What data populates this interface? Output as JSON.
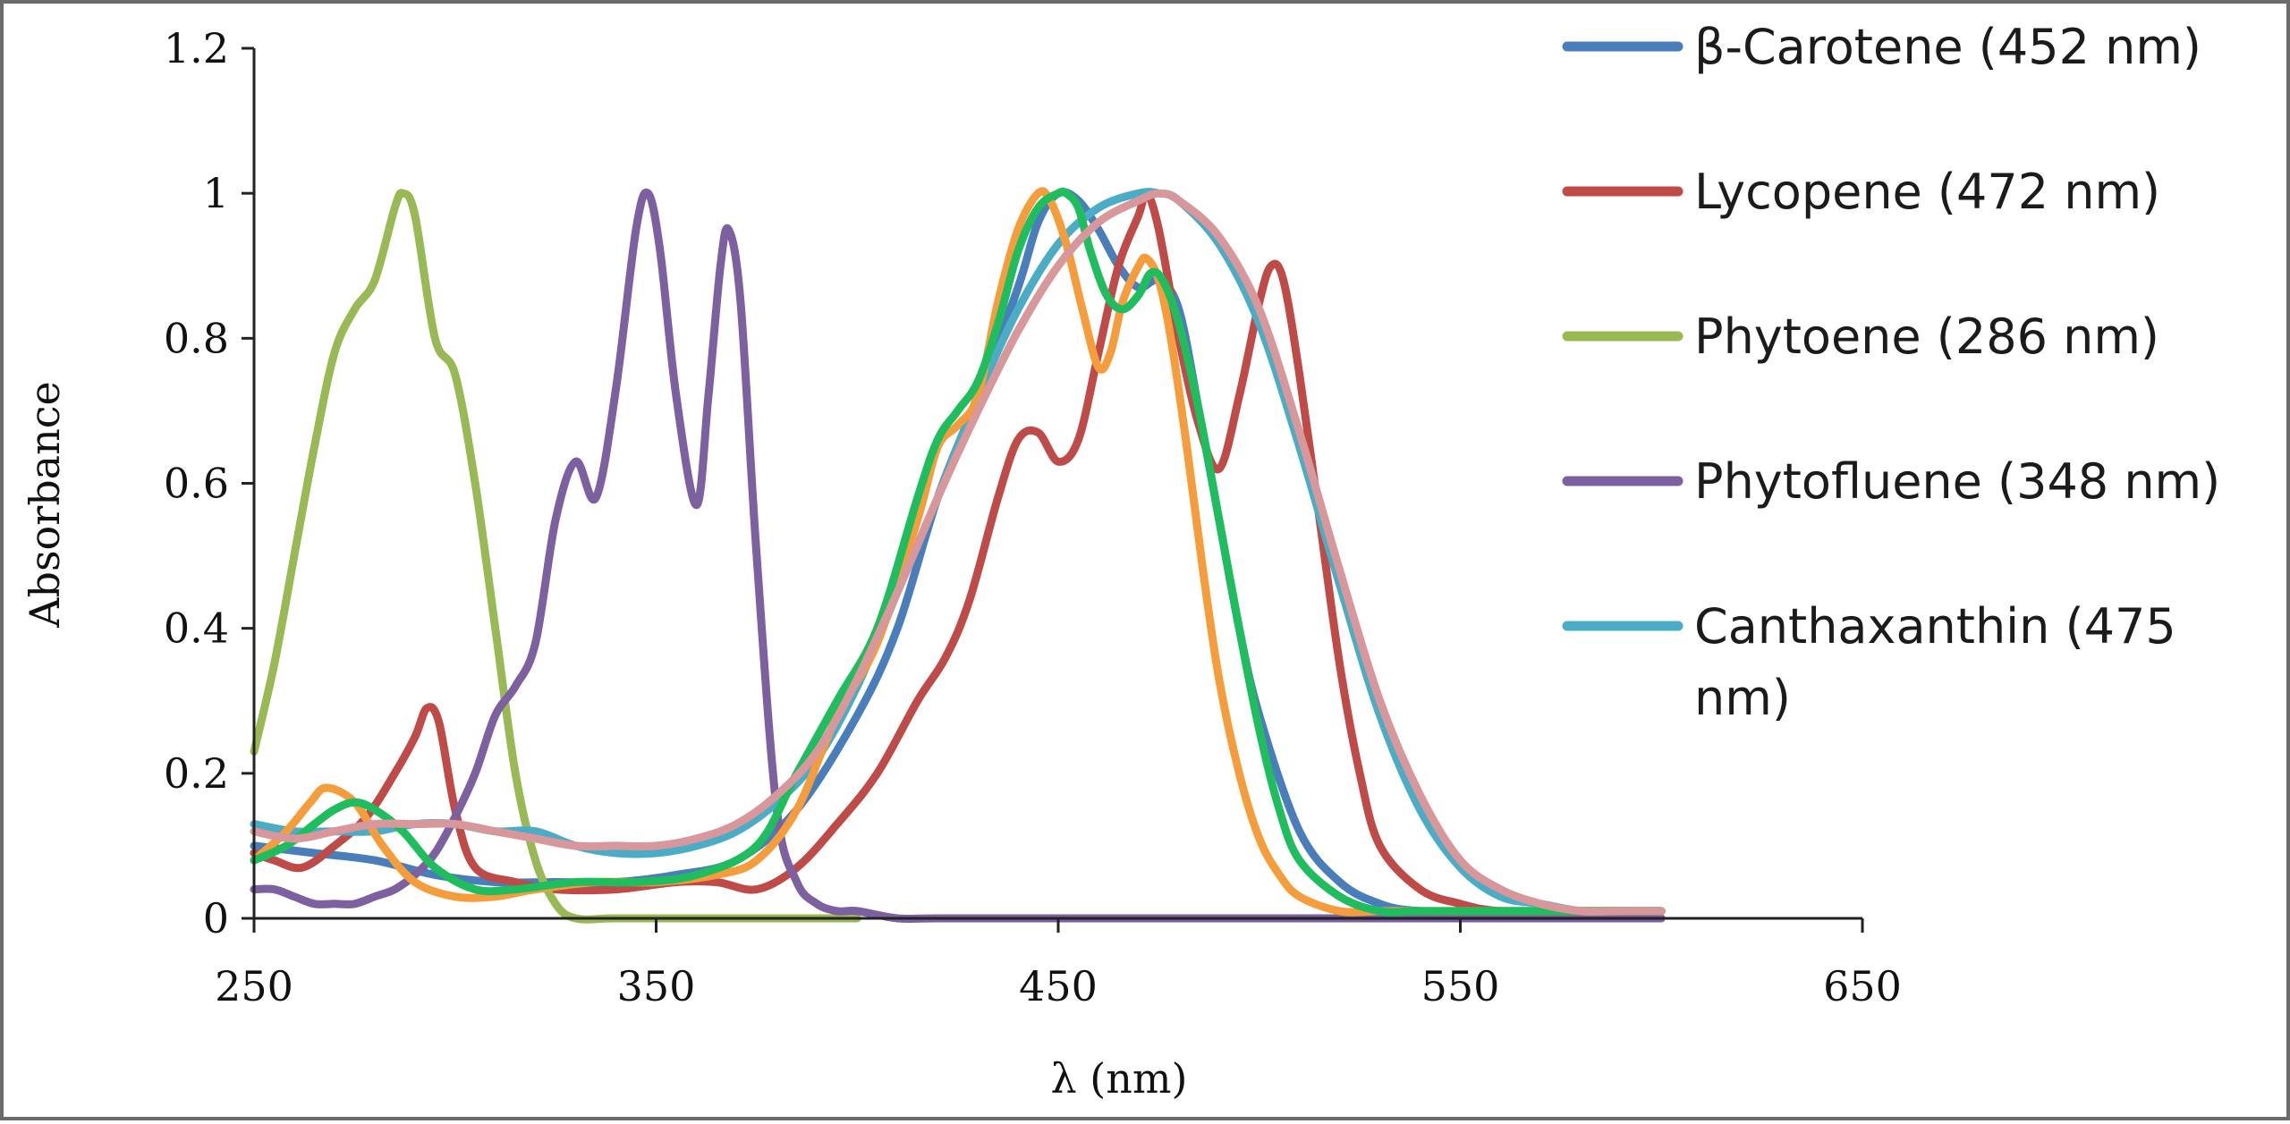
{
  "chart_data": {
    "type": "line",
    "title": "",
    "xlabel": "λ (nm)",
    "ylabel": "Absorbance",
    "xlim": [
      250,
      650
    ],
    "ylim": [
      0,
      1.2
    ],
    "x_ticks": [
      "250",
      "350",
      "450",
      "550",
      "650"
    ],
    "y_ticks": [
      "0",
      "0.2",
      "0.4",
      "0.6",
      "0.8",
      "1",
      "1.2"
    ],
    "grid": false,
    "legend_position": "top-right",
    "series": [
      {
        "name": "β-Carotene (452 nm)",
        "legend_lines": [
          "β-Carotene (452 nm)"
        ],
        "color": "#4a7ebb",
        "x": [
          250,
          265,
          280,
          295,
          310,
          325,
          340,
          355,
          370,
          385,
          400,
          410,
          420,
          430,
          440,
          445,
          450,
          455,
          460,
          465,
          470,
          475,
          480,
          485,
          490,
          495,
          500,
          510,
          520,
          530,
          540,
          560,
          580,
          600
        ],
        "y": [
          0.1,
          0.09,
          0.08,
          0.06,
          0.05,
          0.05,
          0.05,
          0.06,
          0.08,
          0.15,
          0.28,
          0.4,
          0.58,
          0.72,
          0.87,
          0.96,
          1.0,
          0.99,
          0.95,
          0.9,
          0.87,
          0.88,
          0.84,
          0.7,
          0.55,
          0.4,
          0.28,
          0.12,
          0.05,
          0.02,
          0.01,
          0.01,
          0.01,
          0.01
        ]
      },
      {
        "name": "Lycopene (472 nm)",
        "legend_lines": [
          "Lycopene (472 nm)"
        ],
        "color": "#be4b48",
        "x": [
          250,
          255,
          262,
          270,
          278,
          285,
          290,
          293,
          296,
          300,
          305,
          315,
          325,
          340,
          355,
          365,
          375,
          385,
          395,
          405,
          415,
          422,
          428,
          435,
          440,
          445,
          450,
          455,
          460,
          465,
          470,
          472,
          475,
          480,
          485,
          490,
          495,
          500,
          503,
          506,
          510,
          515,
          520,
          525,
          530,
          540,
          550,
          560,
          580,
          600
        ],
        "y": [
          0.09,
          0.08,
          0.07,
          0.1,
          0.14,
          0.2,
          0.25,
          0.29,
          0.27,
          0.15,
          0.07,
          0.05,
          0.04,
          0.04,
          0.05,
          0.05,
          0.04,
          0.07,
          0.13,
          0.2,
          0.3,
          0.36,
          0.44,
          0.58,
          0.66,
          0.67,
          0.63,
          0.66,
          0.78,
          0.9,
          0.97,
          1.0,
          0.95,
          0.8,
          0.68,
          0.62,
          0.72,
          0.85,
          0.9,
          0.88,
          0.75,
          0.55,
          0.35,
          0.2,
          0.1,
          0.04,
          0.02,
          0.01,
          0.01,
          0.01
        ]
      },
      {
        "name": "Phytoene (286 nm)",
        "legend_lines": [
          "Phytoene (286 nm)"
        ],
        "color": "#98b954",
        "x": [
          250,
          255,
          260,
          265,
          270,
          275,
          280,
          285,
          287,
          290,
          295,
          300,
          305,
          310,
          315,
          320,
          325,
          330,
          340,
          360,
          380,
          400
        ],
        "y": [
          0.23,
          0.35,
          0.5,
          0.65,
          0.78,
          0.84,
          0.88,
          0.98,
          1.0,
          0.97,
          0.8,
          0.75,
          0.6,
          0.4,
          0.2,
          0.08,
          0.02,
          0.0,
          0.0,
          0.0,
          0.0,
          0.0
        ]
      },
      {
        "name": "Phytofluene (348 nm)",
        "legend_lines": [
          "Phytofluene (348 nm)"
        ],
        "color": "#7d60a0",
        "x": [
          250,
          255,
          260,
          265,
          270,
          275,
          280,
          285,
          290,
          295,
          300,
          305,
          310,
          315,
          320,
          325,
          330,
          335,
          340,
          345,
          348,
          351,
          355,
          360,
          363,
          366,
          368,
          371,
          375,
          380,
          385,
          390,
          395,
          400,
          410,
          420,
          450,
          500,
          550,
          600
        ],
        "y": [
          0.04,
          0.04,
          0.03,
          0.02,
          0.02,
          0.02,
          0.03,
          0.04,
          0.06,
          0.09,
          0.14,
          0.2,
          0.28,
          0.32,
          0.38,
          0.55,
          0.63,
          0.58,
          0.73,
          0.95,
          1.0,
          0.92,
          0.72,
          0.57,
          0.72,
          0.9,
          0.95,
          0.85,
          0.5,
          0.15,
          0.05,
          0.02,
          0.01,
          0.01,
          0.0,
          0.0,
          0.0,
          0.0,
          0.0,
          0.0
        ]
      },
      {
        "name": "Canthaxanthin (475 nm)",
        "legend_lines": [
          "Canthaxanthin (475",
          "nm)"
        ],
        "color": "#4bacc6",
        "x": [
          250,
          260,
          270,
          280,
          290,
          300,
          310,
          320,
          330,
          340,
          350,
          360,
          370,
          380,
          390,
          400,
          410,
          420,
          430,
          440,
          450,
          460,
          470,
          475,
          480,
          490,
          500,
          510,
          520,
          530,
          540,
          550,
          560,
          570,
          580,
          590,
          600
        ],
        "y": [
          0.13,
          0.12,
          0.12,
          0.12,
          0.13,
          0.13,
          0.12,
          0.12,
          0.1,
          0.09,
          0.09,
          0.1,
          0.12,
          0.16,
          0.22,
          0.32,
          0.45,
          0.58,
          0.72,
          0.84,
          0.93,
          0.98,
          1.0,
          1.0,
          0.99,
          0.93,
          0.82,
          0.65,
          0.46,
          0.28,
          0.15,
          0.07,
          0.03,
          0.02,
          0.01,
          0.01,
          0.01
        ]
      },
      {
        "name": "",
        "legend_lines": [],
        "color": "#f59d3d",
        "x": [
          250,
          258,
          264,
          268,
          275,
          282,
          290,
          300,
          310,
          320,
          335,
          350,
          365,
          375,
          385,
          395,
          405,
          415,
          420,
          425,
          430,
          435,
          440,
          445,
          448,
          452,
          456,
          460,
          463,
          466,
          470,
          472,
          475,
          478,
          482,
          486,
          490,
          495,
          500,
          505,
          510,
          520,
          530,
          540,
          560,
          580,
          600
        ],
        "y": [
          0.08,
          0.12,
          0.16,
          0.18,
          0.16,
          0.1,
          0.05,
          0.03,
          0.03,
          0.04,
          0.05,
          0.05,
          0.06,
          0.08,
          0.15,
          0.28,
          0.38,
          0.55,
          0.65,
          0.68,
          0.72,
          0.85,
          0.95,
          1.0,
          0.99,
          0.93,
          0.84,
          0.76,
          0.78,
          0.85,
          0.9,
          0.91,
          0.88,
          0.8,
          0.65,
          0.48,
          0.33,
          0.2,
          0.11,
          0.06,
          0.03,
          0.01,
          0.01,
          0.01,
          0.01,
          0.01,
          0.01
        ]
      },
      {
        "name": "",
        "legend_lines": [],
        "color": "#1fbd5e",
        "x": [
          250,
          258,
          265,
          270,
          275,
          280,
          287,
          295,
          305,
          315,
          330,
          345,
          360,
          375,
          385,
          395,
          405,
          415,
          420,
          425,
          430,
          435,
          440,
          445,
          450,
          452,
          455,
          458,
          462,
          466,
          470,
          473,
          476,
          480,
          485,
          490,
          495,
          500,
          505,
          510,
          520,
          530,
          540,
          560,
          580,
          600
        ],
        "y": [
          0.08,
          0.1,
          0.13,
          0.15,
          0.16,
          0.15,
          0.12,
          0.07,
          0.04,
          0.04,
          0.05,
          0.05,
          0.06,
          0.1,
          0.2,
          0.3,
          0.4,
          0.58,
          0.66,
          0.7,
          0.74,
          0.82,
          0.92,
          0.98,
          1.0,
          1.0,
          0.98,
          0.92,
          0.86,
          0.84,
          0.86,
          0.89,
          0.88,
          0.82,
          0.7,
          0.55,
          0.4,
          0.26,
          0.15,
          0.08,
          0.03,
          0.01,
          0.01,
          0.01,
          0.01,
          0.01
        ]
      },
      {
        "name": "",
        "legend_lines": [],
        "color": "#d7979b",
        "x": [
          250,
          260,
          270,
          280,
          290,
          300,
          310,
          320,
          330,
          340,
          350,
          360,
          370,
          380,
          390,
          400,
          410,
          420,
          430,
          440,
          450,
          460,
          470,
          475,
          480,
          490,
          500,
          510,
          520,
          530,
          540,
          550,
          560,
          570,
          580,
          590,
          600
        ],
        "y": [
          0.12,
          0.11,
          0.12,
          0.13,
          0.13,
          0.13,
          0.12,
          0.11,
          0.1,
          0.1,
          0.1,
          0.11,
          0.13,
          0.17,
          0.23,
          0.33,
          0.45,
          0.58,
          0.7,
          0.81,
          0.9,
          0.96,
          0.99,
          1.0,
          0.99,
          0.94,
          0.84,
          0.67,
          0.48,
          0.3,
          0.17,
          0.08,
          0.04,
          0.02,
          0.01,
          0.01,
          0.01
        ]
      }
    ]
  }
}
